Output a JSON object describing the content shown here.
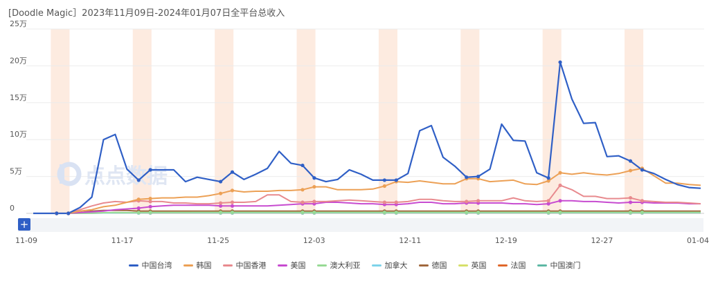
{
  "title": "[Doodle Magic］2023年11月09日-2024年01月07日全平台总收入",
  "watermark": "点点数据",
  "zoom_button": "+",
  "chart_data": {
    "type": "line",
    "title": "[Doodle Magic］2023年11月09日-2024年01月07日全平台总收入",
    "xlabel": "",
    "ylabel": "",
    "ylim": [
      0,
      250000
    ],
    "y_ticks": [
      0,
      50000,
      100000,
      150000,
      200000,
      250000
    ],
    "y_tick_labels": [
      "0",
      "5万",
      "10万",
      "15万",
      "20万",
      "25万"
    ],
    "x_tick_labels": [
      "11-09",
      "11-17",
      "11-25",
      "12-03",
      "12-11",
      "12-19",
      "12-27",
      "01-04"
    ],
    "x_tick_index": [
      0,
      8,
      16,
      24,
      32,
      40,
      48,
      56
    ],
    "weekend_bands_start_index": [
      2,
      9,
      16,
      23,
      30,
      37,
      44,
      51
    ],
    "grid": "horizontal",
    "legend": "bottom",
    "x": [
      "11-09",
      "11-10",
      "11-11",
      "11-12",
      "11-13",
      "11-14",
      "11-15",
      "11-16",
      "11-17",
      "11-18",
      "11-19",
      "11-20",
      "11-21",
      "11-22",
      "11-23",
      "11-24",
      "11-25",
      "11-26",
      "11-27",
      "11-28",
      "11-29",
      "11-30",
      "12-01",
      "12-02",
      "12-03",
      "12-04",
      "12-05",
      "12-06",
      "12-07",
      "12-08",
      "12-09",
      "12-10",
      "12-11",
      "12-12",
      "12-13",
      "12-14",
      "12-15",
      "12-16",
      "12-17",
      "12-18",
      "12-19",
      "12-20",
      "12-21",
      "12-22",
      "12-23",
      "12-24",
      "12-25",
      "12-26",
      "12-27",
      "12-28",
      "12-29",
      "12-30",
      "12-31",
      "01-01",
      "01-02",
      "01-03",
      "01-04",
      "01-05"
    ],
    "series": [
      {
        "name": "中国台湾",
        "color": "#2f5fc6",
        "values": [
          0,
          0,
          0,
          0,
          8000,
          22000,
          100000,
          107000,
          60000,
          45000,
          59000,
          59000,
          59000,
          43000,
          49000,
          46000,
          43000,
          56000,
          46000,
          53000,
          61000,
          84000,
          68000,
          65000,
          48000,
          43000,
          46000,
          59000,
          53000,
          45000,
          45000,
          45000,
          54000,
          112000,
          119000,
          76000,
          64000,
          49000,
          50000,
          60000,
          121000,
          99000,
          98000,
          55000,
          48000,
          205000,
          155000,
          122000,
          123000,
          77000,
          78000,
          71000,
          59000,
          54000,
          46000,
          39000,
          35000,
          34000
        ]
      },
      {
        "name": "韩国",
        "color": "#eca055",
        "values": [
          0,
          0,
          0,
          0,
          3000,
          5000,
          9000,
          11000,
          15000,
          19000,
          20000,
          21000,
          21000,
          22000,
          22000,
          24000,
          27000,
          31000,
          29000,
          30000,
          30000,
          31000,
          31000,
          32000,
          36000,
          36000,
          32000,
          32000,
          32000,
          33000,
          37000,
          43000,
          42000,
          44000,
          42000,
          40000,
          40000,
          47000,
          47000,
          43000,
          44000,
          45000,
          40000,
          39000,
          44000,
          55000,
          53000,
          55000,
          53000,
          52000,
          54000,
          58000,
          61000,
          51000,
          41000,
          41000,
          39000,
          38000
        ]
      },
      {
        "name": "中国香港",
        "color": "#e88a8e",
        "values": [
          0,
          0,
          0,
          0,
          5000,
          10000,
          14000,
          16000,
          15000,
          17000,
          16000,
          16000,
          14000,
          14000,
          13000,
          13000,
          14000,
          15000,
          15000,
          16000,
          25000,
          25000,
          16000,
          15000,
          16000,
          16000,
          17000,
          18000,
          17000,
          16000,
          15000,
          15000,
          16000,
          19000,
          19000,
          17000,
          16000,
          16000,
          17000,
          17000,
          17000,
          21000,
          17000,
          16000,
          17000,
          38000,
          32000,
          23000,
          23000,
          20000,
          20000,
          21000,
          17000,
          16000,
          15000,
          15000,
          14000,
          13000
        ]
      },
      {
        "name": "美国",
        "color": "#c74bd0",
        "values": [
          0,
          0,
          0,
          0,
          1000,
          2000,
          3000,
          5000,
          6000,
          7000,
          9000,
          10000,
          11000,
          11000,
          11000,
          11000,
          10000,
          10000,
          10000,
          10000,
          10000,
          11000,
          12000,
          13000,
          13000,
          15000,
          15000,
          14000,
          13000,
          13000,
          12000,
          12000,
          13000,
          15000,
          15000,
          13000,
          13000,
          14000,
          14000,
          14000,
          14000,
          13000,
          13000,
          12000,
          13000,
          17000,
          17000,
          16000,
          16000,
          15000,
          14000,
          15000,
          15000,
          14000,
          14000,
          14000,
          13000,
          13000
        ]
      },
      {
        "name": "澳大利亚",
        "color": "#97da95",
        "values": [
          0,
          0,
          0,
          0,
          0,
          500,
          800,
          1000,
          1000,
          1000,
          1200,
          1200,
          1200,
          1200,
          1300,
          1300,
          1300,
          1300,
          1300,
          1300,
          1300,
          1300,
          1300,
          1300,
          1300,
          1300,
          1300,
          1300,
          1300,
          1300,
          1300,
          1300,
          1300,
          1300,
          1300,
          1300,
          1300,
          1300,
          1300,
          1300,
          1300,
          1300,
          1300,
          1300,
          1300,
          1300,
          1300,
          1300,
          1300,
          1300,
          1300,
          1300,
          1300,
          1300,
          1300,
          1300,
          1300,
          1300
        ]
      },
      {
        "name": "加拿大",
        "color": "#7ed3ea",
        "values": [
          0,
          0,
          0,
          0,
          0,
          300,
          500,
          600,
          600,
          600,
          700,
          700,
          700,
          700,
          700,
          700,
          700,
          700,
          700,
          700,
          700,
          700,
          700,
          700,
          700,
          700,
          700,
          700,
          700,
          700,
          700,
          700,
          700,
          700,
          700,
          700,
          700,
          700,
          700,
          700,
          700,
          700,
          700,
          700,
          700,
          700,
          700,
          700,
          700,
          700,
          700,
          700,
          700,
          700,
          700,
          700,
          700,
          700
        ]
      },
      {
        "name": "德国",
        "color": "#a0683d",
        "values": [
          0,
          0,
          0,
          0,
          1000,
          3000,
          4000,
          4000,
          4000,
          3000,
          3000,
          3000,
          3000,
          3000,
          3000,
          3000,
          3000,
          3000,
          3000,
          3000,
          3000,
          3000,
          3000,
          3000,
          3000,
          3000,
          3000,
          3000,
          3000,
          3000,
          3000,
          3000,
          3000,
          3000,
          3000,
          3000,
          3000,
          3000,
          3000,
          3000,
          3000,
          3000,
          3000,
          3000,
          3000,
          3000,
          3000,
          3000,
          3000,
          3000,
          3000,
          3000,
          3000,
          3000,
          3000,
          3000,
          3000,
          3000
        ]
      },
      {
        "name": "英国",
        "color": "#d6e06a",
        "values": [
          0,
          0,
          0,
          0,
          0,
          500,
          800,
          900,
          900,
          900,
          1000,
          1000,
          1000,
          1000,
          1000,
          1000,
          1000,
          1000,
          1000,
          1000,
          1000,
          1000,
          1000,
          1000,
          1000,
          1000,
          1000,
          1000,
          1000,
          1000,
          1000,
          1000,
          1000,
          1000,
          1000,
          1000,
          1000,
          1000,
          1000,
          1000,
          1000,
          1000,
          1000,
          1000,
          1000,
          1000,
          1000,
          1000,
          1000,
          1000,
          1000,
          1000,
          1000,
          1000,
          1000,
          1000,
          1000,
          1000
        ]
      },
      {
        "name": "法国",
        "color": "#e0672a",
        "values": [
          0,
          0,
          0,
          0,
          0,
          300,
          500,
          600,
          600,
          600,
          600,
          600,
          600,
          600,
          600,
          600,
          600,
          600,
          600,
          600,
          600,
          600,
          600,
          600,
          600,
          600,
          600,
          600,
          600,
          600,
          600,
          600,
          600,
          600,
          600,
          600,
          600,
          600,
          600,
          600,
          600,
          600,
          600,
          600,
          600,
          600,
          600,
          600,
          600,
          600,
          600,
          600,
          600,
          600,
          600,
          600,
          600,
          600
        ]
      },
      {
        "name": "中国澳门",
        "color": "#5db8a4",
        "values": [
          0,
          0,
          0,
          0,
          0,
          400,
          600,
          800,
          800,
          800,
          800,
          800,
          800,
          800,
          800,
          800,
          800,
          800,
          800,
          800,
          800,
          800,
          800,
          800,
          800,
          800,
          800,
          800,
          800,
          800,
          800,
          800,
          800,
          800,
          800,
          800,
          800,
          800,
          800,
          800,
          800,
          800,
          800,
          800,
          800,
          800,
          800,
          800,
          800,
          800,
          800,
          800,
          800,
          800,
          800,
          800,
          800,
          800
        ]
      }
    ]
  }
}
